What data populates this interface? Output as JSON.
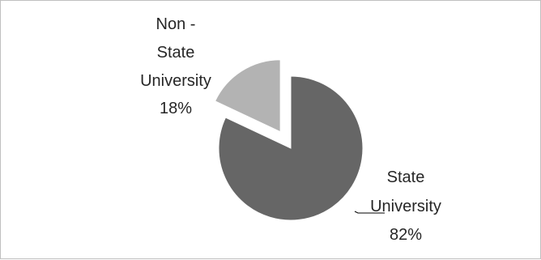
{
  "chart_data": {
    "type": "pie",
    "title": "",
    "slices": [
      {
        "category": "Non -",
        "category_line2": "State",
        "category_line3": "University",
        "percent_label": "18%",
        "value": 18,
        "color": "#b3b3b3",
        "exploded": true
      },
      {
        "category": "State",
        "category_line2": "University",
        "percent_label": "82%",
        "value": 82,
        "color": "#666666",
        "exploded": false
      }
    ],
    "legend": "none",
    "data_labels": "category-and-percent",
    "leader_line": "State University"
  }
}
